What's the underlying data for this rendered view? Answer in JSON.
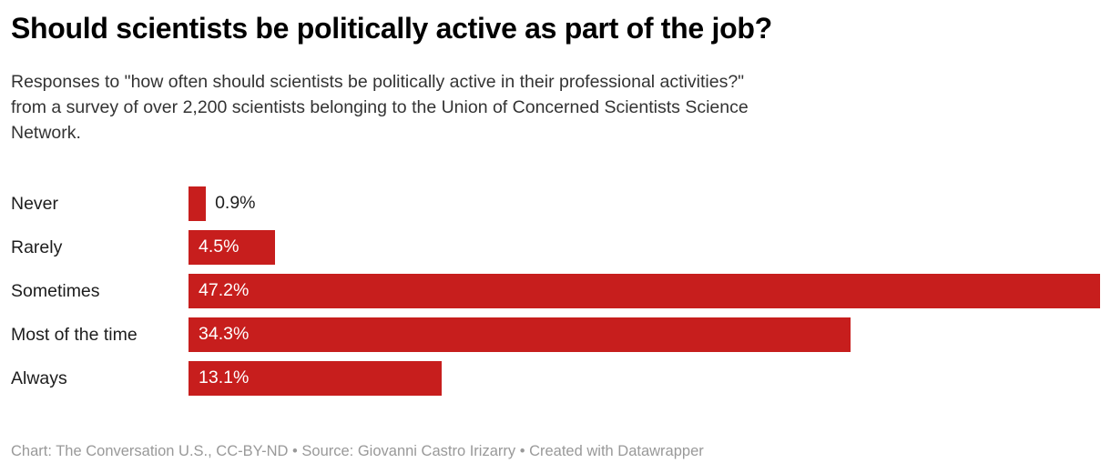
{
  "header": {
    "title": "Should scientists be politically active as part of the job?",
    "subtitle": "Responses to \"how often should scientists be politically active in their professional activities?\"\nfrom a survey of over 2,200 scientists belonging to the Union of Concerned Scientists Science\nNetwork."
  },
  "chart_data": {
    "type": "bar",
    "orientation": "horizontal",
    "title": "Should scientists be politically active as part of the job?",
    "categories": [
      "Never",
      "Rarely",
      "Sometimes",
      "Most of the time",
      "Always"
    ],
    "values": [
      0.9,
      4.5,
      47.2,
      34.3,
      13.1
    ],
    "value_labels": [
      "0.9%",
      "4.5%",
      "47.2%",
      "34.3%",
      "13.1%"
    ],
    "unit": "%",
    "xlim": [
      0,
      47.2
    ],
    "grid": false,
    "legend": false,
    "bar_color": "#c71e1d",
    "value_label_inside_color": "#ffffff",
    "value_label_outside_color": "#1d1d1d"
  },
  "footer": {
    "attribution": "Chart: The Conversation U.S., CC-BY-ND • Source: Giovanni Castro Irizarry • Created with Datawrapper"
  }
}
